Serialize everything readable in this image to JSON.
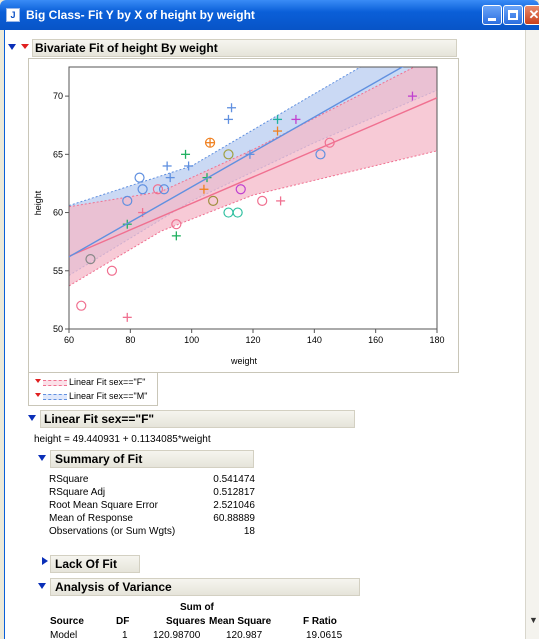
{
  "window": {
    "title": "Big Class- Fit Y by X of height by weight",
    "icon": "jmp-report-icon",
    "controls": [
      "minimize-icon",
      "maximize-icon",
      "close-icon"
    ]
  },
  "report": {
    "header": "Bivariate Fit of height By weight",
    "legend": {
      "items": [
        {
          "label": "Linear Fit sex==\"F\"",
          "color": "#f07090"
        },
        {
          "label": "Linear Fit sex==\"M\"",
          "color": "#6090e0"
        }
      ]
    },
    "linear_fit_f": {
      "header": "Linear Fit sex==\"F\"",
      "equation": "height = 49.440931 + 0.1134085*weight"
    },
    "summary_of_fit": {
      "header": "Summary of Fit",
      "rows": [
        {
          "label": "RSquare",
          "value": "0.541474"
        },
        {
          "label": "RSquare Adj",
          "value": "0.512817"
        },
        {
          "label": "Root Mean Square Error",
          "value": "2.521046"
        },
        {
          "label": "Mean of Response",
          "value": "60.88889"
        },
        {
          "label": "Observations (or Sum Wgts)",
          "value": "18"
        }
      ]
    },
    "lack_of_fit": {
      "header": "Lack Of Fit"
    },
    "anova": {
      "header": "Analysis of Variance",
      "col_group": "Sum of",
      "columns": [
        "Source",
        "DF",
        "Squares",
        "Mean Square",
        "F Ratio"
      ],
      "rows": [
        {
          "source": "Model",
          "df": "1",
          "ss": "120.98700",
          "ms": "120.987",
          "f": "19.0615"
        }
      ]
    }
  },
  "colors": {
    "female": "#f07090",
    "male": "#6090e0",
    "female_band": "#f4b8c8",
    "male_band": "#b8ccf0",
    "accent_green": "#20b060",
    "accent_orange": "#f08020",
    "accent_teal": "#30c0a0",
    "accent_magenta": "#c040d0"
  },
  "chart_data": {
    "type": "scatter",
    "xlabel": "weight",
    "ylabel": "height",
    "xlim": [
      60,
      180
    ],
    "ylim": [
      50,
      72.5
    ],
    "xticks": [
      "60",
      "80",
      "100",
      "120",
      "140",
      "160",
      "180"
    ],
    "yticks": [
      "50",
      "55",
      "60",
      "65",
      "70"
    ],
    "grid": false,
    "series": [
      {
        "name": "sex==F",
        "marker": "circle",
        "points": [
          {
            "x": 64,
            "y": 52,
            "c": "#f07090"
          },
          {
            "x": 67,
            "y": 56,
            "c": "#888888"
          },
          {
            "x": 74,
            "y": 55,
            "c": "#f07090"
          },
          {
            "x": 79,
            "y": 61,
            "c": "#6090e0"
          },
          {
            "x": 83,
            "y": 63,
            "c": "#6090e0"
          },
          {
            "x": 84,
            "y": 62,
            "c": "#6090e0"
          },
          {
            "x": 89,
            "y": 62,
            "c": "#f07090"
          },
          {
            "x": 91,
            "y": 62,
            "c": "#6090e0"
          },
          {
            "x": 95,
            "y": 59,
            "c": "#f07090"
          },
          {
            "x": 106,
            "y": 66,
            "c": "#f08020"
          },
          {
            "x": 107,
            "y": 61,
            "c": "#a09040"
          },
          {
            "x": 112,
            "y": 65,
            "c": "#a0a040"
          },
          {
            "x": 112,
            "y": 60,
            "c": "#30c0a0"
          },
          {
            "x": 115,
            "y": 60,
            "c": "#30c0a0"
          },
          {
            "x": 116,
            "y": 62,
            "c": "#c040d0"
          },
          {
            "x": 123,
            "y": 61,
            "c": "#f07090"
          },
          {
            "x": 142,
            "y": 65,
            "c": "#6090e0"
          },
          {
            "x": 145,
            "y": 66,
            "c": "#f07090"
          }
        ]
      },
      {
        "name": "sex==M",
        "marker": "plus",
        "points": [
          {
            "x": 79,
            "y": 51,
            "c": "#f07090"
          },
          {
            "x": 79,
            "y": 59,
            "c": "#20b060"
          },
          {
            "x": 84,
            "y": 60,
            "c": "#f07090"
          },
          {
            "x": 92,
            "y": 64,
            "c": "#6090e0"
          },
          {
            "x": 93,
            "y": 63,
            "c": "#6090e0"
          },
          {
            "x": 95,
            "y": 58,
            "c": "#20b060"
          },
          {
            "x": 98,
            "y": 65,
            "c": "#20b060"
          },
          {
            "x": 99,
            "y": 64,
            "c": "#6090e0"
          },
          {
            "x": 104,
            "y": 62,
            "c": "#f08020"
          },
          {
            "x": 105,
            "y": 63,
            "c": "#20b060"
          },
          {
            "x": 106,
            "y": 66,
            "c": "#f08020"
          },
          {
            "x": 112,
            "y": 68,
            "c": "#6090e0"
          },
          {
            "x": 113,
            "y": 69,
            "c": "#6090e0"
          },
          {
            "x": 119,
            "y": 65,
            "c": "#6090e0"
          },
          {
            "x": 128,
            "y": 68,
            "c": "#20b0a0"
          },
          {
            "x": 128,
            "y": 67,
            "c": "#f08020"
          },
          {
            "x": 129,
            "y": 61,
            "c": "#f07090"
          },
          {
            "x": 134,
            "y": 68,
            "c": "#c040d0"
          },
          {
            "x": 172,
            "y": 70,
            "c": "#c040d0"
          }
        ]
      }
    ],
    "fits": [
      {
        "name": "Linear Fit sex==F",
        "intercept": 49.440931,
        "slope": 0.1134085,
        "color": "#f07090",
        "band": [
          {
            "x": 60,
            "lo": 53.7,
            "hi": 60.5
          },
          {
            "x": 90,
            "lo": 58.4,
            "hi": 61.8
          },
          {
            "x": 120,
            "lo": 61.5,
            "hi": 65.4
          },
          {
            "x": 180,
            "lo": 65.3,
            "hi": 73.5
          }
        ]
      },
      {
        "name": "Linear Fit sex==M",
        "intercept": 47.2,
        "slope": 0.15,
        "color": "#6090e0",
        "band": [
          {
            "x": 60,
            "lo": 54.6,
            "hi": 60.6
          },
          {
            "x": 100,
            "lo": 61.0,
            "hi": 64.0
          },
          {
            "x": 140,
            "lo": 66.0,
            "hi": 70.2
          },
          {
            "x": 180,
            "lo": 70.5,
            "hi": 76.3
          }
        ]
      }
    ]
  }
}
